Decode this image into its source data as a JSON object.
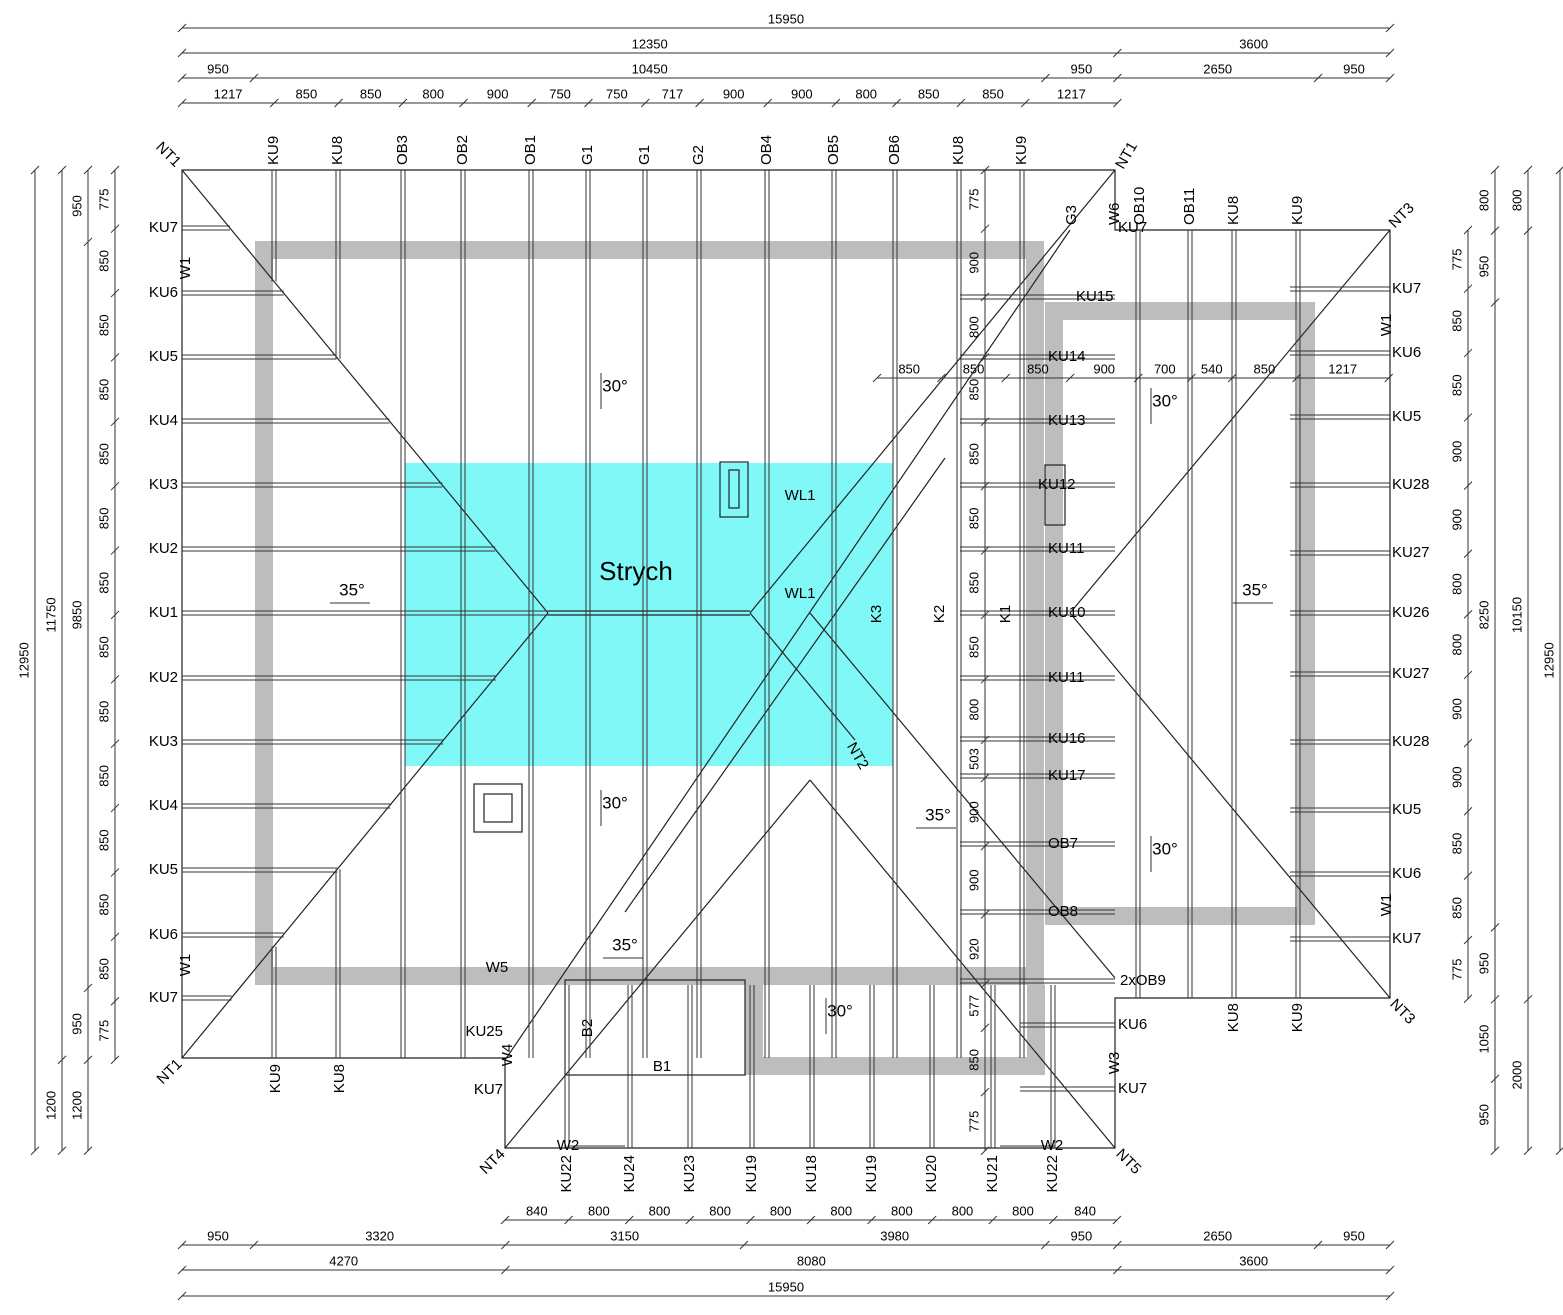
{
  "dimensions": {
    "top": [
      [
        15950
      ],
      [
        12350,
        3600
      ],
      [
        950,
        10450,
        950,
        2650,
        950
      ],
      [
        1217,
        850,
        850,
        800,
        900,
        750,
        750,
        717,
        900,
        900,
        800,
        850,
        850,
        1217
      ]
    ],
    "bottom": [
      [
        840,
        800,
        800,
        800,
        800,
        800,
        800,
        800,
        800,
        840
      ],
      [
        950,
        3320,
        3150,
        3980,
        950,
        2650,
        950
      ],
      [
        4270,
        8080,
        3600
      ],
      [
        15950
      ]
    ],
    "left": [
      [
        12950
      ],
      [
        11750,
        1200
      ],
      [
        950,
        9850,
        950,
        1200
      ],
      [
        775,
        850,
        850,
        850,
        850,
        850,
        850,
        850,
        850,
        850,
        850,
        850,
        850,
        775
      ]
    ],
    "right": [
      [
        775,
        850,
        850,
        900,
        900,
        800,
        800,
        900,
        900,
        850,
        850,
        775
      ],
      [
        800,
        950,
        8250,
        950,
        1050,
        950
      ],
      [
        800,
        10150,
        2000
      ],
      [
        12950
      ]
    ],
    "inner_horizontal": [
      850,
      850,
      850,
      900,
      700,
      540,
      850,
      1217
    ],
    "inner_vertical": [
      775,
      900,
      800,
      850,
      850,
      850,
      850,
      850,
      800,
      503,
      900,
      900,
      920,
      577,
      850,
      775
    ]
  },
  "labels": [
    "KU9",
    "KU8",
    "OB3",
    "OB2",
    "OB1",
    "G1",
    "G1",
    "G2",
    "OB4",
    "OB5",
    "OB6",
    "KU8",
    "KU9",
    "G3",
    "W6",
    "OB10",
    "OB11",
    "KU8",
    "KU9",
    "KU7",
    "KU7",
    "KU6",
    "KU5",
    "KU4",
    "KU3",
    "KU2",
    "KU1",
    "KU2",
    "KU3",
    "KU4",
    "KU5",
    "KU6",
    "KU7",
    "KU15",
    "KU14",
    "KU13",
    "KU12",
    "KU11",
    "KU10",
    "KU11",
    "KU16",
    "KU17",
    "OB7",
    "OB8",
    "2xOB9",
    "KU6",
    "KU7",
    "KU7",
    "KU6",
    "KU5",
    "KU28",
    "KU27",
    "KU26",
    "KU27",
    "KU28",
    "KU5",
    "KU6",
    "KU7",
    "KU22",
    "KU24",
    "KU23",
    "KU19",
    "KU18",
    "KU19",
    "KU20",
    "KU21",
    "KU22",
    "KU8",
    "KU9",
    "KU9",
    "KU8",
    "NT1",
    "NT1",
    "NT1",
    "NT3",
    "NT3",
    "NT4",
    "NT5",
    "NT2",
    "W1",
    "W1",
    "W1",
    "W1",
    "W5",
    "W4",
    "B2",
    "B1",
    "KU25",
    "KU7",
    "W2",
    "W2",
    "W3",
    "WL1",
    "WL1",
    "K3",
    "K2",
    "K1"
  ],
  "slopes": [
    "30°",
    "35°",
    "30°",
    "35°",
    "35°",
    "30°",
    "30°",
    "35°",
    "30°"
  ],
  "room": "Strych"
}
